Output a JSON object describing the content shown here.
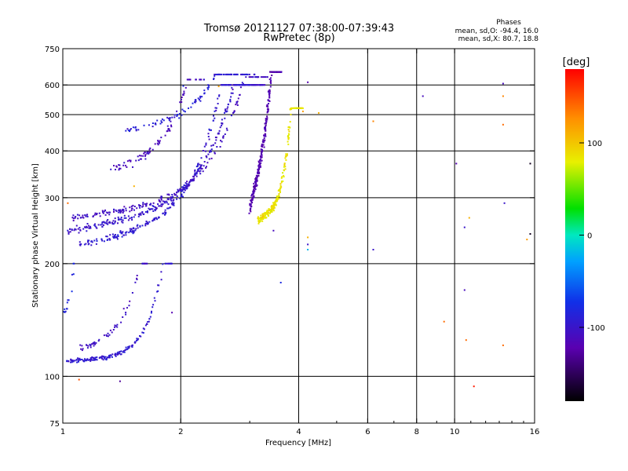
{
  "chart_data": {
    "type": "scatter",
    "title": "Tromsø 20121127 07:38:00-07:39:43",
    "subtitle": "RwPretec (8p)",
    "stats": {
      "heading": "Phases",
      "line1": "mean, sd,O: -94.4, 16.0",
      "line2": "mean, sd,X:  80.7, 18.8"
    },
    "xlabel": "Frequency [MHz]",
    "ylabel": "Stationary phase Virtual Height [km]",
    "x_scale": "log",
    "y_scale": "log",
    "xlim": [
      1,
      16
    ],
    "ylim": [
      75,
      750
    ],
    "x_ticks": [
      1,
      2,
      4,
      6,
      8,
      10,
      16
    ],
    "x_tick_labels": [
      "1",
      "2",
      "4",
      "6",
      "8",
      "10",
      "16"
    ],
    "y_ticks": [
      75,
      100,
      200,
      300,
      400,
      500,
      600,
      750
    ],
    "y_tick_labels": [
      "75",
      "100",
      "200",
      "300",
      "400",
      "500",
      "600",
      "750"
    ],
    "x_major_grid": [
      2,
      4,
      6,
      8,
      10
    ],
    "y_major_grid": [
      100,
      200,
      300,
      400,
      500,
      600
    ],
    "colorbar": {
      "label": "[deg]",
      "range": [
        -180,
        180
      ],
      "ticks": [
        100,
        0,
        -100
      ],
      "tick_labels": [
        "100",
        "0",
        "-100"
      ]
    },
    "traces": [
      {
        "f": [
          1.03,
          3.3
        ],
        "h": [
          245,
          300
        ],
        "h_max": 600,
        "curv": 2.2,
        "jitter": 0.03,
        "phase": -100,
        "n": 300
      },
      {
        "f": [
          1.1,
          3.0
        ],
        "h": [
          225,
          280
        ],
        "h_max": 600,
        "curv": 2.4,
        "jitter": 0.03,
        "phase": -95,
        "n": 220
      },
      {
        "f": [
          1.05,
          3.4
        ],
        "h": [
          265,
          310
        ],
        "h_max": 630,
        "curv": 1.8,
        "jitter": 0.025,
        "phase": -105,
        "n": 180
      },
      {
        "f": [
          3.0,
          3.62
        ],
        "h": [
          280,
          630
        ],
        "h_max": 650,
        "curv": 3.0,
        "jitter": 0.05,
        "phase": -120,
        "n": 300
      },
      {
        "f": [
          3.15,
          4.1
        ],
        "h": [
          262,
          300
        ],
        "h_max": 520,
        "curv": 3.4,
        "jitter": 0.035,
        "phase": 85,
        "n": 260
      },
      {
        "f": [
          1.45,
          3.1
        ],
        "h": [
          455,
          520
        ],
        "h_max": 640,
        "curv": 2.2,
        "jitter": 0.025,
        "phase": -90,
        "n": 110
      },
      {
        "f": [
          1.3,
          2.3
        ],
        "h": [
          350,
          440
        ],
        "h_max": 620,
        "curv": 1.6,
        "jitter": 0.04,
        "phase": -110,
        "n": 90
      },
      {
        "f": [
          1.02,
          1.9
        ],
        "h": [
          110,
          112
        ],
        "h_max": 200,
        "curv": 1.0,
        "jitter": 0.018,
        "phase": -95,
        "n": 170
      },
      {
        "f": [
          1.1,
          1.7
        ],
        "h": [
          118,
          140
        ],
        "h_max": 200,
        "curv": 1.6,
        "jitter": 0.035,
        "phase": -105,
        "n": 60
      },
      {
        "f": [
          1.01,
          1.08
        ],
        "h": [
          150,
          165
        ],
        "h_max": 200,
        "curv": 1.0,
        "jitter": 0.03,
        "phase": -80,
        "n": 14
      }
    ],
    "scatter": [
      {
        "x": 4.22,
        "y": 610,
        "phase": -120
      },
      {
        "x": 4.22,
        "y": 235,
        "phase": 110
      },
      {
        "x": 4.22,
        "y": 225,
        "phase": -100
      },
      {
        "x": 4.22,
        "y": 218,
        "phase": -20
      },
      {
        "x": 6.2,
        "y": 218,
        "phase": -100
      },
      {
        "x": 6.2,
        "y": 480,
        "phase": 130
      },
      {
        "x": 8.3,
        "y": 560,
        "phase": -110
      },
      {
        "x": 10.1,
        "y": 370,
        "phase": -120
      },
      {
        "x": 10.6,
        "y": 250,
        "phase": -100
      },
      {
        "x": 10.9,
        "y": 265,
        "phase": 110
      },
      {
        "x": 10.6,
        "y": 170,
        "phase": -110
      },
      {
        "x": 9.4,
        "y": 140,
        "phase": 140
      },
      {
        "x": 10.7,
        "y": 125,
        "phase": 140
      },
      {
        "x": 11.2,
        "y": 94,
        "phase": 170
      },
      {
        "x": 13.3,
        "y": 605,
        "phase": -110
      },
      {
        "x": 13.3,
        "y": 560,
        "phase": 130
      },
      {
        "x": 13.3,
        "y": 470,
        "phase": 140
      },
      {
        "x": 13.4,
        "y": 290,
        "phase": -100
      },
      {
        "x": 13.3,
        "y": 121,
        "phase": 140
      },
      {
        "x": 15.6,
        "y": 370,
        "phase": -170
      },
      {
        "x": 15.6,
        "y": 240,
        "phase": -170
      },
      {
        "x": 15.3,
        "y": 232,
        "phase": 120
      },
      {
        "x": 1.1,
        "y": 98,
        "phase": 150
      },
      {
        "x": 1.4,
        "y": 97,
        "phase": -130
      },
      {
        "x": 2.03,
        "y": 596,
        "phase": -80
      },
      {
        "x": 3.6,
        "y": 178,
        "phase": -80
      },
      {
        "x": 3.45,
        "y": 245,
        "phase": -110
      },
      {
        "x": 1.9,
        "y": 148,
        "phase": -120
      },
      {
        "x": 1.52,
        "y": 322,
        "phase": 110
      },
      {
        "x": 2.5,
        "y": 595,
        "phase": 120
      },
      {
        "x": 4.1,
        "y": 510,
        "phase": 120
      },
      {
        "x": 4.5,
        "y": 505,
        "phase": 110
      },
      {
        "x": 1.03,
        "y": 290,
        "phase": 140
      }
    ]
  }
}
